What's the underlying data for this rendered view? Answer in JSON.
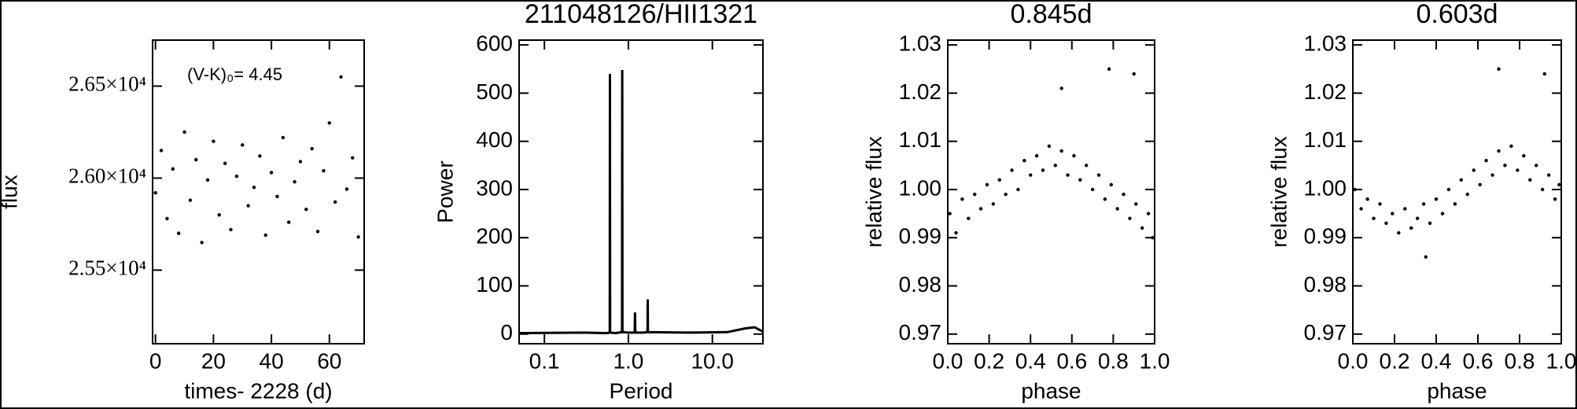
{
  "chart_data": [
    {
      "type": "scatter",
      "xlabel": "times- 2228 (d)",
      "ylabel": "flux",
      "annotation": "(V-K)₀= 4.45",
      "color": "#000000",
      "x": [
        0,
        2,
        4,
        6,
        8,
        10,
        12,
        14,
        16,
        18,
        20,
        22,
        24,
        26,
        28,
        30,
        32,
        34,
        36,
        38,
        40,
        42,
        44,
        46,
        48,
        50,
        52,
        54,
        56,
        58,
        60,
        62,
        64,
        66,
        68,
        70
      ],
      "values": [
        25920,
        26150,
        25780,
        26050,
        25700,
        26250,
        25880,
        26100,
        25650,
        25990,
        26200,
        25800,
        26080,
        25720,
        26010,
        26180,
        25850,
        25950,
        26120,
        25690,
        26030,
        25900,
        26220,
        25760,
        25980,
        26090,
        25830,
        26160,
        25710,
        26040,
        26300,
        25870,
        26550,
        25940,
        26110,
        25680
      ],
      "xlim": [
        -1,
        72
      ],
      "ylim": [
        25100,
        26750
      ],
      "xticks": [
        0,
        20,
        40,
        60
      ],
      "yticks": [
        {
          "value": 25500,
          "label": "2.55×10⁴"
        },
        {
          "value": 26000,
          "label": "2.60×10⁴"
        },
        {
          "value": 26500,
          "label": "2.65×10⁴"
        }
      ]
    },
    {
      "type": "line",
      "title": "211048126/HII1321",
      "xlabel": "Period",
      "ylabel": "Power",
      "log_x": true,
      "color": "#000000",
      "x": [
        0.05,
        0.3,
        0.55,
        0.6,
        0.603,
        0.606,
        0.7,
        0.84,
        0.845,
        0.85,
        1.0,
        1.19,
        1.2,
        1.21,
        1.5,
        1.69,
        1.7,
        1.71,
        5,
        15,
        25,
        32,
        40
      ],
      "values": [
        2,
        3,
        2,
        3,
        540,
        3,
        2,
        4,
        548,
        4,
        3,
        3,
        45,
        3,
        3,
        4,
        72,
        4,
        3,
        4,
        12,
        14,
        5
      ],
      "xlim": [
        0.05,
        40
      ],
      "ylim": [
        -20,
        610
      ],
      "xticks": [
        0.1,
        {
          "value": 1,
          "label": "1.0"
        },
        {
          "value": 10,
          "label": "10.0"
        }
      ],
      "yticks": [
        0,
        100,
        200,
        300,
        400,
        500,
        600
      ]
    },
    {
      "type": "scatter",
      "title": "0.845d",
      "xlabel": "phase",
      "ylabel": "relative flux",
      "color": "#000000",
      "x": [
        0.01,
        0.04,
        0.07,
        0.1,
        0.13,
        0.16,
        0.19,
        0.22,
        0.25,
        0.28,
        0.31,
        0.34,
        0.37,
        0.4,
        0.43,
        0.46,
        0.49,
        0.52,
        0.55,
        0.58,
        0.61,
        0.64,
        0.67,
        0.7,
        0.73,
        0.76,
        0.79,
        0.82,
        0.85,
        0.88,
        0.91,
        0.94,
        0.97,
        0.99,
        0.55,
        0.78,
        0.9
      ],
      "values": [
        0.995,
        0.991,
        0.998,
        0.994,
        0.999,
        0.996,
        1.001,
        0.997,
        1.002,
        0.999,
        1.004,
        1.0,
        1.006,
        1.003,
        1.007,
        1.004,
        1.009,
        1.005,
        1.008,
        1.003,
        1.007,
        1.002,
        1.005,
        1.0,
        1.003,
        0.998,
        1.001,
        0.996,
        0.999,
        0.994,
        0.997,
        0.992,
        0.995,
        0.99,
        1.021,
        1.025,
        1.024
      ],
      "xlim": [
        0,
        1
      ],
      "ylim": [
        0.968,
        1.031
      ],
      "xticks": [
        {
          "value": 0,
          "label": "0.0"
        },
        0.2,
        0.4,
        0.6,
        0.8,
        {
          "value": 1,
          "label": "1.0"
        }
      ],
      "yticks": [
        0.97,
        0.98,
        0.99,
        {
          "value": 1,
          "label": "1.00"
        },
        1.01,
        1.02,
        1.03
      ]
    },
    {
      "type": "scatter",
      "title": "0.603d",
      "xlabel": "phase",
      "ylabel": "relative flux",
      "color": "#000000",
      "x": [
        0.01,
        0.04,
        0.07,
        0.1,
        0.13,
        0.16,
        0.19,
        0.22,
        0.25,
        0.28,
        0.31,
        0.34,
        0.37,
        0.4,
        0.43,
        0.46,
        0.49,
        0.52,
        0.55,
        0.58,
        0.61,
        0.64,
        0.67,
        0.7,
        0.73,
        0.76,
        0.79,
        0.82,
        0.85,
        0.88,
        0.91,
        0.94,
        0.97,
        0.99,
        0.7,
        0.92,
        0.35
      ],
      "values": [
        1.0,
        0.996,
        0.998,
        0.994,
        0.997,
        0.993,
        0.995,
        0.991,
        0.996,
        0.992,
        0.994,
        0.997,
        0.993,
        0.998,
        0.995,
        1.0,
        0.997,
        1.002,
        0.999,
        1.004,
        1.001,
        1.006,
        1.003,
        1.008,
        1.005,
        1.009,
        1.004,
        1.007,
        1.002,
        1.005,
        1.0,
        1.003,
        0.998,
        1.001,
        1.025,
        1.024,
        0.986
      ],
      "xlim": [
        0,
        1
      ],
      "ylim": [
        0.968,
        1.031
      ],
      "xticks": [
        {
          "value": 0,
          "label": "0.0"
        },
        0.2,
        0.4,
        0.6,
        0.8,
        {
          "value": 1,
          "label": "1.0"
        }
      ],
      "yticks": [
        0.97,
        0.98,
        0.99,
        {
          "value": 1,
          "label": "1.00"
        },
        1.01,
        1.02,
        1.03
      ]
    }
  ]
}
